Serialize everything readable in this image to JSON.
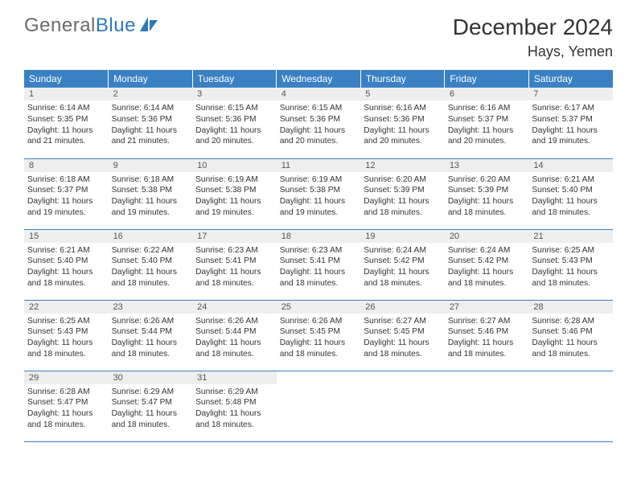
{
  "logo": {
    "part1": "General",
    "part2": "Blue"
  },
  "title": "December 2024",
  "location": "Hays, Yemen",
  "colors": {
    "header_bg": "#3a81c4",
    "header_text": "#ffffff",
    "daynum_bg": "#eeeeee",
    "border": "#3a81c4",
    "logo_gray": "#6a6a6a",
    "logo_blue": "#2f78b7"
  },
  "weekdays": [
    "Sunday",
    "Monday",
    "Tuesday",
    "Wednesday",
    "Thursday",
    "Friday",
    "Saturday"
  ],
  "days": [
    {
      "n": "1",
      "sunrise": "6:14 AM",
      "sunset": "5:35 PM",
      "daylight": "11 hours and 21 minutes."
    },
    {
      "n": "2",
      "sunrise": "6:14 AM",
      "sunset": "5:36 PM",
      "daylight": "11 hours and 21 minutes."
    },
    {
      "n": "3",
      "sunrise": "6:15 AM",
      "sunset": "5:36 PM",
      "daylight": "11 hours and 20 minutes."
    },
    {
      "n": "4",
      "sunrise": "6:15 AM",
      "sunset": "5:36 PM",
      "daylight": "11 hours and 20 minutes."
    },
    {
      "n": "5",
      "sunrise": "6:16 AM",
      "sunset": "5:36 PM",
      "daylight": "11 hours and 20 minutes."
    },
    {
      "n": "6",
      "sunrise": "6:16 AM",
      "sunset": "5:37 PM",
      "daylight": "11 hours and 20 minutes."
    },
    {
      "n": "7",
      "sunrise": "6:17 AM",
      "sunset": "5:37 PM",
      "daylight": "11 hours and 19 minutes."
    },
    {
      "n": "8",
      "sunrise": "6:18 AM",
      "sunset": "5:37 PM",
      "daylight": "11 hours and 19 minutes."
    },
    {
      "n": "9",
      "sunrise": "6:18 AM",
      "sunset": "5:38 PM",
      "daylight": "11 hours and 19 minutes."
    },
    {
      "n": "10",
      "sunrise": "6:19 AM",
      "sunset": "5:38 PM",
      "daylight": "11 hours and 19 minutes."
    },
    {
      "n": "11",
      "sunrise": "6:19 AM",
      "sunset": "5:38 PM",
      "daylight": "11 hours and 19 minutes."
    },
    {
      "n": "12",
      "sunrise": "6:20 AM",
      "sunset": "5:39 PM",
      "daylight": "11 hours and 18 minutes."
    },
    {
      "n": "13",
      "sunrise": "6:20 AM",
      "sunset": "5:39 PM",
      "daylight": "11 hours and 18 minutes."
    },
    {
      "n": "14",
      "sunrise": "6:21 AM",
      "sunset": "5:40 PM",
      "daylight": "11 hours and 18 minutes."
    },
    {
      "n": "15",
      "sunrise": "6:21 AM",
      "sunset": "5:40 PM",
      "daylight": "11 hours and 18 minutes."
    },
    {
      "n": "16",
      "sunrise": "6:22 AM",
      "sunset": "5:40 PM",
      "daylight": "11 hours and 18 minutes."
    },
    {
      "n": "17",
      "sunrise": "6:23 AM",
      "sunset": "5:41 PM",
      "daylight": "11 hours and 18 minutes."
    },
    {
      "n": "18",
      "sunrise": "6:23 AM",
      "sunset": "5:41 PM",
      "daylight": "11 hours and 18 minutes."
    },
    {
      "n": "19",
      "sunrise": "6:24 AM",
      "sunset": "5:42 PM",
      "daylight": "11 hours and 18 minutes."
    },
    {
      "n": "20",
      "sunrise": "6:24 AM",
      "sunset": "5:42 PM",
      "daylight": "11 hours and 18 minutes."
    },
    {
      "n": "21",
      "sunrise": "6:25 AM",
      "sunset": "5:43 PM",
      "daylight": "11 hours and 18 minutes."
    },
    {
      "n": "22",
      "sunrise": "6:25 AM",
      "sunset": "5:43 PM",
      "daylight": "11 hours and 18 minutes."
    },
    {
      "n": "23",
      "sunrise": "6:26 AM",
      "sunset": "5:44 PM",
      "daylight": "11 hours and 18 minutes."
    },
    {
      "n": "24",
      "sunrise": "6:26 AM",
      "sunset": "5:44 PM",
      "daylight": "11 hours and 18 minutes."
    },
    {
      "n": "25",
      "sunrise": "6:26 AM",
      "sunset": "5:45 PM",
      "daylight": "11 hours and 18 minutes."
    },
    {
      "n": "26",
      "sunrise": "6:27 AM",
      "sunset": "5:45 PM",
      "daylight": "11 hours and 18 minutes."
    },
    {
      "n": "27",
      "sunrise": "6:27 AM",
      "sunset": "5:46 PM",
      "daylight": "11 hours and 18 minutes."
    },
    {
      "n": "28",
      "sunrise": "6:28 AM",
      "sunset": "5:46 PM",
      "daylight": "11 hours and 18 minutes."
    },
    {
      "n": "29",
      "sunrise": "6:28 AM",
      "sunset": "5:47 PM",
      "daylight": "11 hours and 18 minutes."
    },
    {
      "n": "30",
      "sunrise": "6:29 AM",
      "sunset": "5:47 PM",
      "daylight": "11 hours and 18 minutes."
    },
    {
      "n": "31",
      "sunrise": "6:29 AM",
      "sunset": "5:48 PM",
      "daylight": "11 hours and 18 minutes."
    }
  ],
  "labels": {
    "sunrise": "Sunrise: ",
    "sunset": "Sunset: ",
    "daylight": "Daylight: "
  }
}
